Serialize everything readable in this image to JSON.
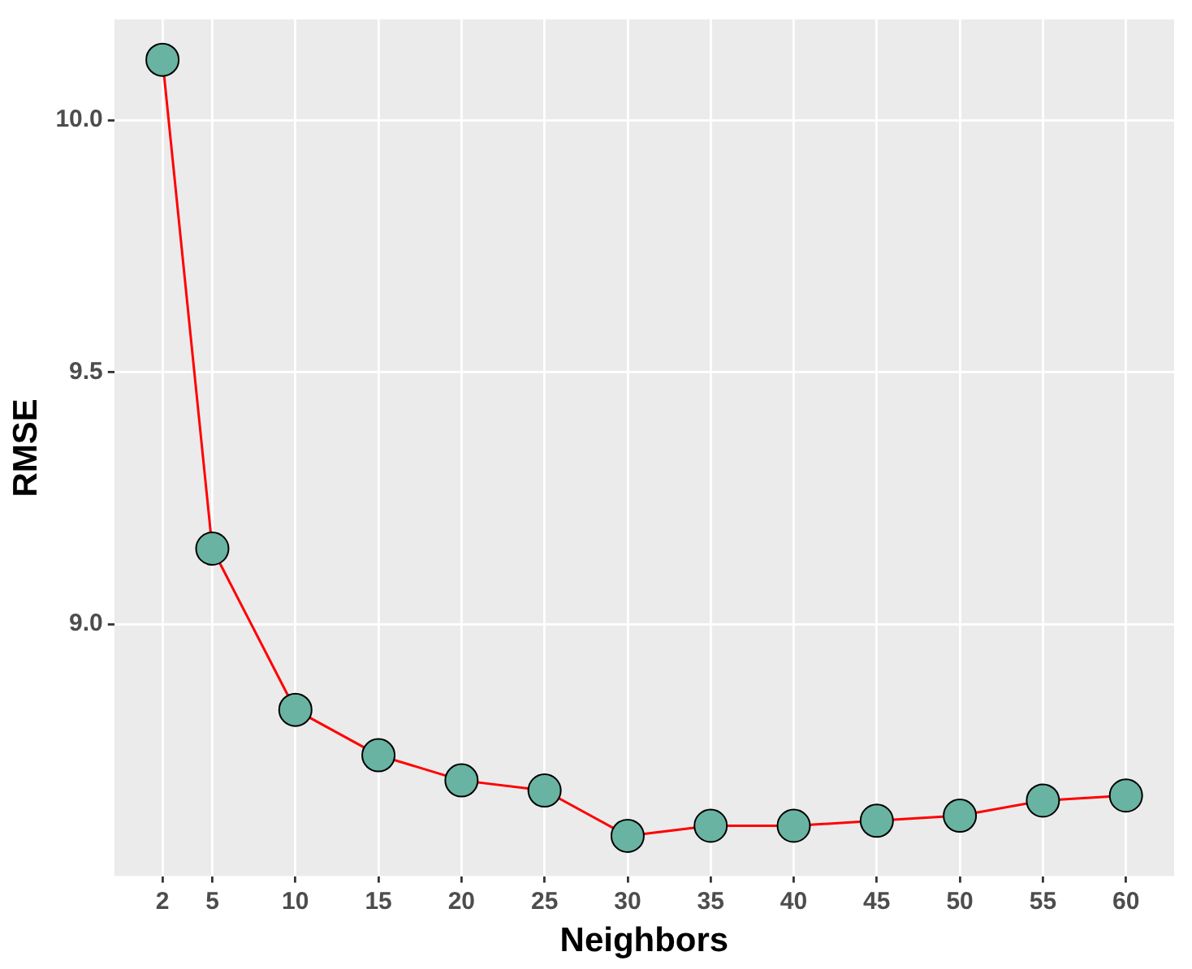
{
  "chart_data": {
    "type": "line",
    "xlabel": "Neighbors",
    "ylabel": "RMSE",
    "x": [
      2,
      5,
      10,
      15,
      20,
      25,
      30,
      35,
      40,
      45,
      50,
      55,
      60
    ],
    "series": [
      {
        "color": "#ff0000",
        "colors": [
          "#69b3a2",
          "#69b3a2",
          "#69b3a2",
          "#69b3a2",
          "#69b3a2",
          "#69b3a2",
          "#69b3a2",
          "#69b3a2",
          "#69b3a2",
          "#69b3a2",
          "#69b3a2",
          "#69b3a2",
          "#69b3a2"
        ],
        "values": [
          10.12,
          9.15,
          8.83,
          8.74,
          8.69,
          8.67,
          8.58,
          8.6,
          8.6,
          8.61,
          8.62,
          8.65,
          8.66
        ]
      }
    ],
    "xlim": [
      -0.9,
      62.9
    ],
    "xticks": [
      2,
      5,
      10,
      15,
      20,
      25,
      30,
      35,
      40,
      45,
      50,
      55,
      60
    ],
    "ylim": [
      8.5,
      10.2
    ],
    "yticks": [
      {
        "value": 9,
        "label": "9.0"
      },
      {
        "value": 9.5,
        "label": "9.5"
      },
      {
        "value": 10,
        "label": "10.0"
      }
    ],
    "grid": true,
    "marker": "circle",
    "line_style": "solid"
  }
}
